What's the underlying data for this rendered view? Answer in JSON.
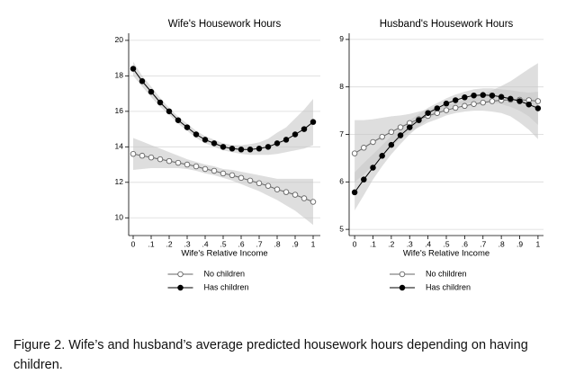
{
  "chart_data": [
    {
      "type": "line",
      "title": "Wife's Housework Hours",
      "x_label": "Wife's Relative Income",
      "x": [
        0,
        0.05,
        0.1,
        0.15,
        0.2,
        0.25,
        0.3,
        0.35,
        0.4,
        0.45,
        0.5,
        0.55,
        0.6,
        0.65,
        0.7,
        0.75,
        0.8,
        0.85,
        0.9,
        0.95,
        1
      ],
      "xlim": [
        -0.025,
        1.04
      ],
      "ylim": [
        9,
        20.4
      ],
      "xticks": [
        0,
        {
          "value": 0.1,
          "label": ".1"
        },
        {
          "value": 0.2,
          "label": ".2"
        },
        {
          "value": 0.3,
          "label": ".3"
        },
        {
          "value": 0.4,
          "label": ".4"
        },
        {
          "value": 0.5,
          "label": ".5"
        },
        {
          "value": 0.6,
          "label": ".6"
        },
        {
          "value": 0.7,
          "label": ".7"
        },
        {
          "value": 0.8,
          "label": ".8"
        },
        {
          "value": 0.9,
          "label": ".9"
        },
        1
      ],
      "yticks": [
        10,
        12,
        14,
        16,
        18,
        20
      ],
      "grid": true,
      "legend": "bottom",
      "band_color": "#c8c8c8",
      "series": [
        {
          "name": "No children",
          "color": "#666666",
          "marker_fill": "#ffffff",
          "values": [
            13.6,
            13.5,
            13.4,
            13.3,
            13.2,
            13.1,
            13.0,
            12.9,
            12.75,
            12.65,
            12.5,
            12.4,
            12.25,
            12.1,
            11.95,
            11.8,
            11.6,
            11.45,
            11.3,
            11.1,
            10.9
          ],
          "ci_lower": [
            12.7,
            12.75,
            12.8,
            12.8,
            12.8,
            12.8,
            12.75,
            12.65,
            12.5,
            12.4,
            12.25,
            12.1,
            11.9,
            11.7,
            11.5,
            11.25,
            11.0,
            10.7,
            10.4,
            10.0,
            9.6
          ],
          "ci_upper": [
            14.5,
            14.3,
            14.1,
            13.9,
            13.7,
            13.5,
            13.3,
            13.15,
            13.0,
            12.9,
            12.75,
            12.7,
            12.6,
            12.5,
            12.4,
            12.3,
            12.2,
            12.2,
            12.2,
            12.2,
            12.2
          ]
        },
        {
          "name": "Has children",
          "color": "#000000",
          "marker_fill": "#000000",
          "values": [
            18.4,
            17.7,
            17.1,
            16.5,
            16.0,
            15.5,
            15.1,
            14.7,
            14.4,
            14.2,
            14.0,
            13.9,
            13.85,
            13.85,
            13.9,
            14.0,
            14.2,
            14.4,
            14.7,
            15.0,
            15.4
          ],
          "ci_lower": [
            18.0,
            17.4,
            16.8,
            16.25,
            15.8,
            15.3,
            14.9,
            14.5,
            14.2,
            14.0,
            13.8,
            13.7,
            13.6,
            13.55,
            13.55,
            13.55,
            13.6,
            13.7,
            13.8,
            13.9,
            14.1
          ],
          "ci_upper": [
            18.8,
            18.0,
            17.4,
            16.75,
            16.2,
            15.7,
            15.3,
            14.9,
            14.6,
            14.4,
            14.2,
            14.1,
            14.1,
            14.15,
            14.25,
            14.45,
            14.8,
            15.1,
            15.6,
            16.1,
            16.7
          ]
        }
      ]
    },
    {
      "type": "line",
      "title": "Husband's Housework Hours",
      "x_label": "Wife's Relative Income",
      "x": [
        0,
        0.05,
        0.1,
        0.15,
        0.2,
        0.25,
        0.3,
        0.35,
        0.4,
        0.45,
        0.5,
        0.55,
        0.6,
        0.65,
        0.7,
        0.75,
        0.8,
        0.85,
        0.9,
        0.95,
        1
      ],
      "xlim": [
        -0.03,
        1.03
      ],
      "ylim": [
        4.87,
        9.13
      ],
      "xticks": [
        0,
        {
          "value": 0.1,
          "label": ".1"
        },
        {
          "value": 0.2,
          "label": ".2"
        },
        {
          "value": 0.3,
          "label": ".3"
        },
        {
          "value": 0.4,
          "label": ".4"
        },
        {
          "value": 0.5,
          "label": ".5"
        },
        {
          "value": 0.6,
          "label": ".6"
        },
        {
          "value": 0.7,
          "label": ".7"
        },
        {
          "value": 0.8,
          "label": ".8"
        },
        {
          "value": 0.9,
          "label": ".9"
        },
        1
      ],
      "yticks": [
        5,
        6,
        7,
        8,
        9
      ],
      "grid": true,
      "legend": "bottom",
      "band_color": "#c8c8c8",
      "series": [
        {
          "name": "No children",
          "color": "#666666",
          "marker_fill": "#ffffff",
          "values": [
            6.6,
            6.72,
            6.84,
            6.95,
            7.05,
            7.15,
            7.24,
            7.32,
            7.39,
            7.45,
            7.51,
            7.56,
            7.6,
            7.64,
            7.67,
            7.7,
            7.72,
            7.73,
            7.73,
            7.72,
            7.7
          ],
          "ci_lower": [
            6.0,
            6.15,
            6.35,
            6.55,
            6.75,
            6.9,
            7.05,
            7.15,
            7.25,
            7.32,
            7.4,
            7.45,
            7.48,
            7.5,
            7.5,
            7.48,
            7.45,
            7.38,
            7.25,
            7.1,
            6.9
          ],
          "ci_upper": [
            7.3,
            7.3,
            7.32,
            7.35,
            7.38,
            7.4,
            7.43,
            7.48,
            7.53,
            7.58,
            7.62,
            7.67,
            7.72,
            7.78,
            7.85,
            7.93,
            8.02,
            8.12,
            8.25,
            8.38,
            8.5
          ]
        },
        {
          "name": "Has children",
          "color": "#000000",
          "marker_fill": "#000000",
          "values": [
            5.78,
            6.05,
            6.3,
            6.55,
            6.78,
            6.98,
            7.15,
            7.3,
            7.45,
            7.55,
            7.65,
            7.72,
            7.78,
            7.82,
            7.83,
            7.82,
            7.79,
            7.75,
            7.7,
            7.63,
            7.55
          ],
          "ci_lower": [
            5.4,
            5.72,
            6.05,
            6.33,
            6.58,
            6.8,
            7.0,
            7.17,
            7.32,
            7.44,
            7.53,
            7.6,
            7.65,
            7.68,
            7.69,
            7.68,
            7.64,
            7.58,
            7.5,
            7.38,
            7.2
          ],
          "ci_upper": [
            6.2,
            6.4,
            6.58,
            6.77,
            6.97,
            7.15,
            7.3,
            7.43,
            7.56,
            7.66,
            7.76,
            7.84,
            7.9,
            7.95,
            7.97,
            7.97,
            7.95,
            7.93,
            7.9,
            7.88,
            7.9
          ]
        }
      ]
    }
  ],
  "caption": [
    "Figure 2. Wife’s and husband’s average predicted housework hours depending on having",
    "children."
  ]
}
